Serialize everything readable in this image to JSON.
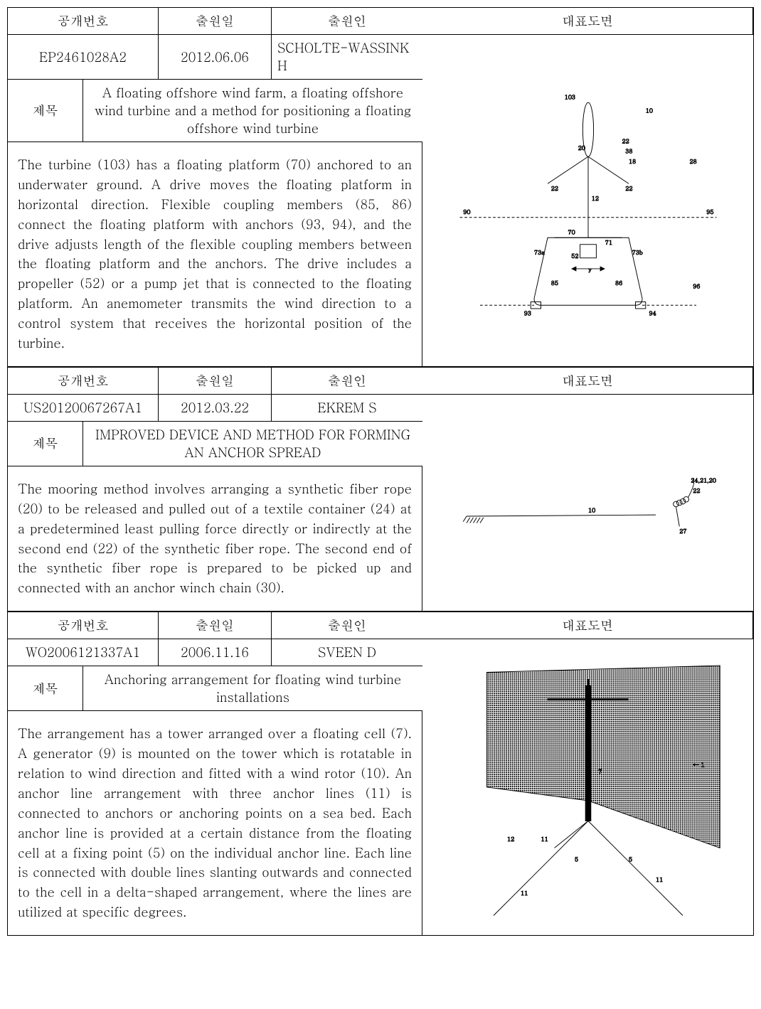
{
  "headers": {
    "pub_no": "공개번호",
    "filing_date": "출원일",
    "applicant": "출원인",
    "drawing": "대표도면",
    "title": "제목"
  },
  "records": [
    {
      "pub_no": "EP2461028A2",
      "filing_date": "2012.06.06",
      "applicant": "SCHOLTE-WASSINK H",
      "title": "A floating offshore wind farm, a floating offshore wind turbine and a method for positioning a floating offshore wind turbine",
      "abstract": "The turbine (103) has a floating platform (70) anchored to an underwater ground. A drive moves the floating platform in horizontal direction. Flexible coupling members (85, 86) connect the floating platform with anchors (93, 94), and the drive adjusts length of the flexible coupling members between the floating platform and the anchors. The drive includes a propeller (52) or a pump jet that is connected to the floating platform. An anemometer transmits the wind direction to a control system that receives the horizontal position of the turbine.",
      "figure_height": 350
    },
    {
      "pub_no": "US20120067267A1",
      "filing_date": "2012.03.22",
      "applicant": "EKREM S",
      "title": "IMPROVED DEVICE AND METHOD FOR FORMING AN ANCHOR SPREAD",
      "abstract": "The mooring method involves arranging a synthetic fiber rope (20) to be released and pulled out of a textile container (24) at a predetermined least pulling force directly or indirectly at the second end (22) of the synthetic fiber rope. The second end of the synthetic fiber rope is prepared to be picked up and connected with an anchor winch chain (30).",
      "figure_height": 250
    },
    {
      "pub_no": "WO2006121337A1",
      "filing_date": "2006.11.16",
      "applicant": "SVEEN D",
      "title": "Anchoring arrangement for floating wind turbine installations",
      "abstract": "The arrangement has a tower arranged over a floating cell (7). A generator (9) is mounted on the tower which is rotatable in relation to wind direction and fitted with a wind rotor (10). An anchor line arrangement with three anchor lines (11) is connected to anchors or anchoring points on a sea bed. Each anchor line is provided at a certain distance from the floating cell at a fixing point (5) on the individual anchor line. Each line is connected with double lines slanting outwards and connected to the cell in a delta-shaped arrangement, where the lines are utilized at specific degrees.",
      "figure_height": 430
    }
  ],
  "colors": {
    "border": "#000000",
    "background": "#ffffff",
    "text": "#000000"
  },
  "layout": {
    "block_border_width": 1,
    "font_size_cell": 18,
    "font_size_abstract": 18,
    "line_height_abstract": 1.55,
    "col_pub_width": 212,
    "col_date_width": 159,
    "col_app_width": 212,
    "col_drawing_width": 435,
    "title_label_width": 106
  }
}
